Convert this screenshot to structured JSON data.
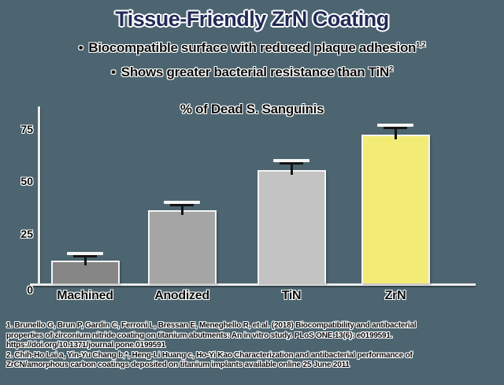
{
  "slide": {
    "title": "Tissue-Friendly ZrN Coating",
    "bullets": [
      {
        "marker": "•",
        "text": "Biocompatible surface with reduced plaque adhesion",
        "sup": "1,2"
      },
      {
        "marker": "•",
        "text": "Shows greater bacterial resistance than TiN",
        "sup": "2"
      }
    ]
  },
  "chart_data": {
    "type": "bar",
    "title": "% of Dead S. Sanguinis",
    "categories": [
      "Machined",
      "Anodized",
      "TiN",
      "ZrN"
    ],
    "values": [
      11,
      35,
      54,
      71
    ],
    "errors": [
      1.5,
      2,
      2.5,
      2.5
    ],
    "bar_colors": [
      "#868686",
      "#a5a5a5",
      "#c3c3c3",
      "#f2ec76"
    ],
    "yticks": [
      0,
      25,
      50,
      75
    ],
    "ylim": [
      0,
      84
    ],
    "xlabel": "",
    "ylabel": "",
    "grid": false,
    "error_bars": true,
    "legend": "none"
  },
  "footer": {
    "lines": [
      "1. Brunello G, Brun P, Gardin C, Ferroni L, Bressan E, Meneghello R, et al. (2018) Biocompatibility and antibacterial",
      "properties of zirconium nitride coating on titanium abutments: An in vitro study. PLoS ONE 13(6): e0199591.",
      "https://doi.org/10.1371/journal.pone.0199591",
      "2. Chih-Ho Lai a, Yin-Yu Chang b,*, Heng-Li Huang c, Ho-Yi Kao Characterization and antibacterial performance of",
      "ZrCN/amorphous carbon coatings deposited on titanium implants available online 25 June 2011"
    ]
  },
  "colors": {
    "background": "#4c6570",
    "title_text": "#222b57",
    "body_text": "#0c0c0c",
    "axis": "#ececec",
    "highlight_bar": "#f2ec76"
  }
}
